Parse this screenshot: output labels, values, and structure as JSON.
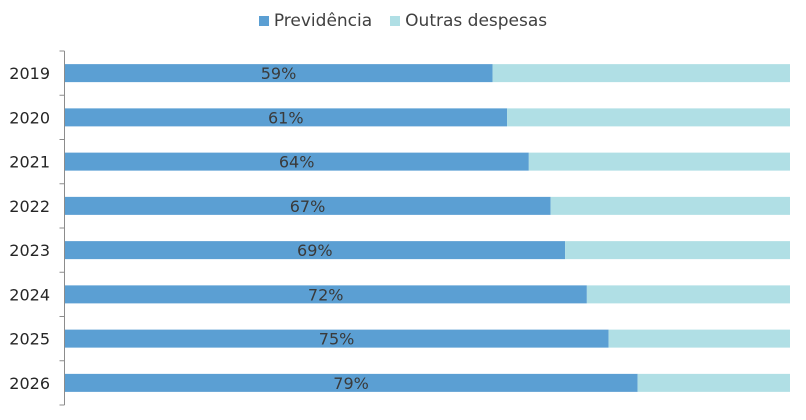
{
  "chart_data": {
    "type": "bar",
    "orientation": "horizontal",
    "stacked": "100%",
    "title": "",
    "xlabel": "",
    "ylabel": "",
    "categories": [
      "2019",
      "2020",
      "2021",
      "2022",
      "2023",
      "2024",
      "2025",
      "2026"
    ],
    "series": [
      {
        "name": "Previdência",
        "color": "#5B9FD3",
        "values": [
          59,
          61,
          64,
          67,
          69,
          72,
          75,
          79
        ]
      },
      {
        "name": "Outras despesas",
        "color": "#B0DFE5",
        "values": [
          41,
          39,
          36,
          33,
          31,
          28,
          25,
          21
        ]
      }
    ],
    "data_labels": [
      "59%",
      "61%",
      "64%",
      "67%",
      "69%",
      "72%",
      "75%",
      "79%"
    ],
    "xlim": [
      0,
      100
    ],
    "legend_position": "top-center",
    "grid": false
  }
}
